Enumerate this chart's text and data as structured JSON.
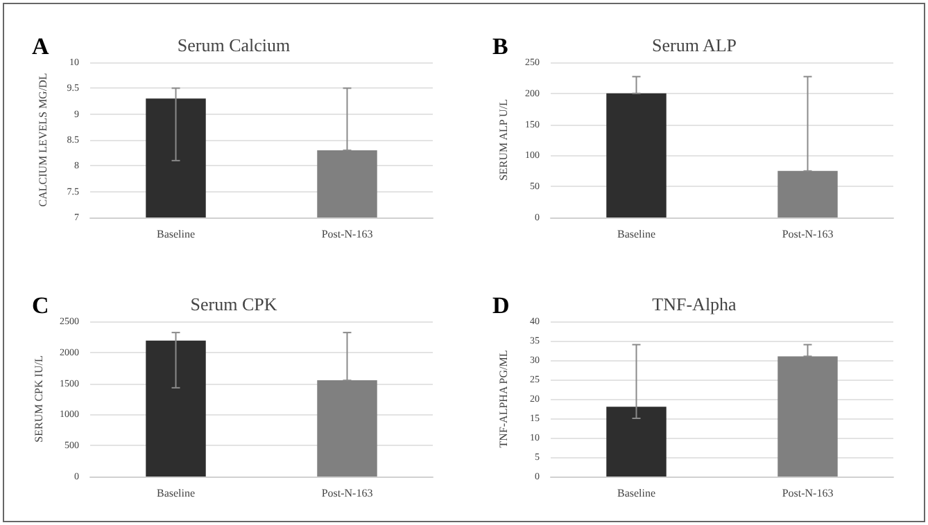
{
  "chart_data": [
    {
      "type": "bar",
      "title": "Serum Calcium",
      "ylabel": "CALCIUM LEVELS MG/DL",
      "annotations": [
        "A"
      ],
      "categories": [
        "Baseline",
        "Post-N-163"
      ],
      "values": [
        9.3,
        8.3
      ],
      "colors": [
        "#2e2e2e",
        "#808080"
      ],
      "errors": [
        [
          8.1,
          9.5
        ],
        [
          8.3,
          9.5
        ]
      ],
      "ylim": [
        7,
        10
      ],
      "yticks": [
        7,
        7.5,
        8,
        8.5,
        9,
        9.5,
        10
      ],
      "grid": "y"
    },
    {
      "type": "bar",
      "title": "Serum ALP",
      "ylabel": "SERUM ALP U/L",
      "annotations": [
        "B"
      ],
      "categories": [
        "Baseline",
        "Post-N-163"
      ],
      "values": [
        200,
        75
      ],
      "colors": [
        "#2e2e2e",
        "#808080"
      ],
      "errors": [
        [
          200,
          227
        ],
        [
          75,
          227
        ]
      ],
      "ylim": [
        0,
        250
      ],
      "yticks": [
        0,
        50,
        100,
        150,
        200,
        250
      ],
      "grid": "y"
    },
    {
      "type": "bar",
      "title": "Serum CPK",
      "ylabel": "SERUM CPK IU/L",
      "annotations": [
        "C"
      ],
      "categories": [
        "Baseline",
        "Post-N-163"
      ],
      "values": [
        2190,
        1550
      ],
      "colors": [
        "#2e2e2e",
        "#808080"
      ],
      "errors": [
        [
          1430,
          2320
        ],
        [
          1550,
          2320
        ]
      ],
      "ylim": [
        0,
        2500
      ],
      "yticks": [
        0,
        500,
        1000,
        1500,
        2000,
        2500
      ],
      "grid": "y"
    },
    {
      "type": "bar",
      "title": "TNF-Alpha",
      "ylabel": "TNF-ALPHA PG/ML",
      "annotations": [
        "D"
      ],
      "categories": [
        "Baseline",
        "Post-N-163"
      ],
      "values": [
        18,
        31
      ],
      "colors": [
        "#2e2e2e",
        "#808080"
      ],
      "errors": [
        [
          15,
          34
        ],
        [
          31,
          34
        ]
      ],
      "ylim": [
        0,
        40
      ],
      "yticks": [
        0,
        5,
        10,
        15,
        20,
        25,
        30,
        35,
        40
      ],
      "grid": "y"
    }
  ]
}
